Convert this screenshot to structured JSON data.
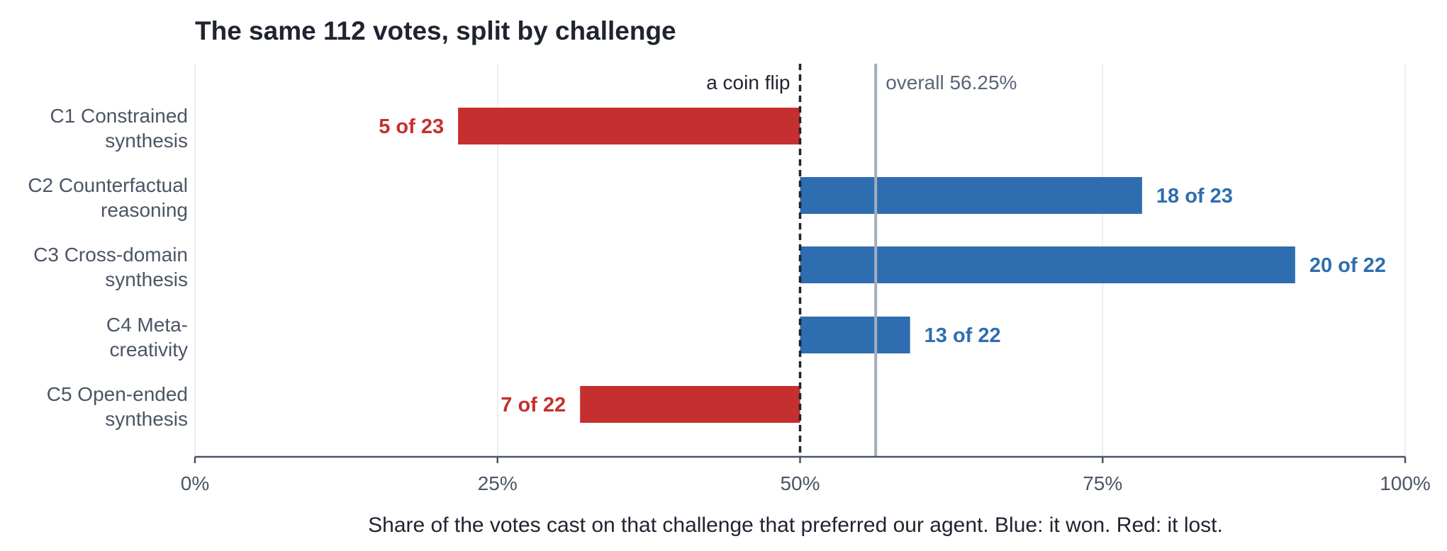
{
  "chart_data": {
    "type": "bar",
    "orientation": "horizontal",
    "title": "The same 112 votes, split by challenge",
    "xlabel": "Share of the votes cast on that challenge that preferred our agent. Blue: it won. Red: it lost.",
    "xlim": [
      0,
      100
    ],
    "x_ticks": [
      0,
      25,
      50,
      75,
      100
    ],
    "x_tick_labels": [
      "0%",
      "25%",
      "50%",
      "75%",
      "100%"
    ],
    "grid": "vertical",
    "categories": [
      [
        "C1  Constrained",
        "synthesis"
      ],
      [
        "C2  Counterfactual",
        "reasoning"
      ],
      [
        "C3  Cross-domain",
        "synthesis"
      ],
      [
        "C4  Meta-",
        "creativity"
      ],
      [
        "C5  Open-ended",
        "synthesis"
      ]
    ],
    "values": [
      21.74,
      78.26,
      90.91,
      59.09,
      31.82
    ],
    "data_labels": [
      "5 of 23",
      "18 of 23",
      "20 of 22",
      "13 of 22",
      "7 of 22"
    ],
    "baseline": 50,
    "reference_lines": [
      {
        "value": 50,
        "label": "a coin flip",
        "style": "dashed",
        "color": "#1f2430"
      },
      {
        "value": 56.25,
        "label": "overall 56.25%",
        "style": "solid",
        "color": "#a3adbd"
      }
    ],
    "colors": {
      "won": "#2e6db0",
      "lost": "#c62f2f",
      "axis": "#4b5565",
      "grid": "#e6e9ee"
    }
  }
}
